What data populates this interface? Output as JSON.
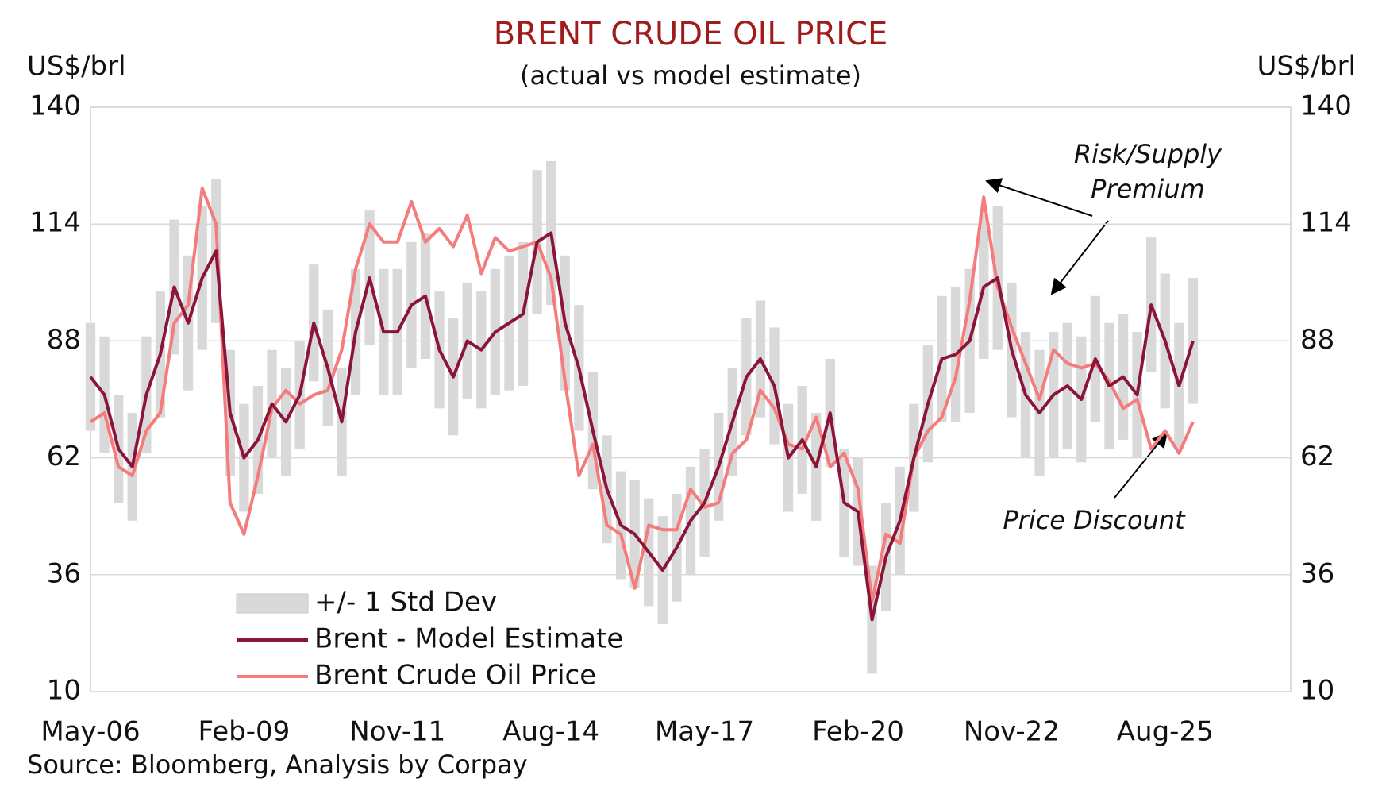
{
  "chart_data": {
    "type": "line",
    "title": "BRENT CRUDE OIL PRICE",
    "subtitle": "(actual vs model estimate)",
    "ylabel": "US$/brl",
    "y2label": "US$/brl",
    "source": "Source: Bloomberg, Analysis by Corpay",
    "categories": [
      "May-06",
      null,
      null,
      null,
      null,
      null,
      null,
      null,
      null,
      null,
      null,
      "Feb-09",
      null,
      null,
      null,
      null,
      null,
      null,
      null,
      null,
      null,
      null,
      "Nov-11",
      null,
      null,
      null,
      null,
      null,
      null,
      null,
      null,
      null,
      null,
      "Aug-14",
      null,
      null,
      null,
      null,
      null,
      null,
      null,
      null,
      null,
      null,
      "May-17",
      null,
      null,
      null,
      null,
      null,
      null,
      null,
      null,
      null,
      null,
      "Feb-20",
      null,
      null,
      null,
      null,
      null,
      null,
      null,
      null,
      null,
      null,
      "Nov-22",
      null,
      null,
      null,
      null,
      null,
      null,
      null,
      null,
      null,
      null,
      "Aug-25",
      null,
      null,
      null,
      null,
      null,
      null,
      null,
      null,
      null
    ],
    "band": {
      "name": "+/- 1 Std Dev",
      "color": "#d9d9d9",
      "values": [
        12,
        13,
        12,
        12,
        13,
        14,
        15,
        15,
        16,
        16,
        14,
        12,
        12,
        12,
        12,
        12,
        13,
        13,
        12,
        14,
        15,
        14,
        14,
        14,
        14,
        13,
        13,
        13,
        13,
        14,
        15,
        16,
        16,
        16,
        15,
        14,
        13,
        12,
        12,
        12,
        12,
        12,
        12,
        12,
        12,
        12,
        12,
        13,
        13,
        13,
        12,
        12,
        12,
        12,
        12,
        12,
        12,
        12,
        12,
        12,
        13,
        14,
        15,
        16,
        16,
        16,
        15,
        14,
        14,
        14,
        14,
        14,
        14,
        14,
        14,
        14,
        15,
        15,
        14,
        14,
        null,
        null,
        null,
        null,
        null,
        null,
        null
      ]
    },
    "series": [
      {
        "name": "Brent - Model Estimate",
        "color": "#8b1538",
        "values": [
          80,
          76,
          64,
          60,
          76,
          85,
          100,
          92,
          102,
          108,
          72,
          62,
          66,
          74,
          70,
          76,
          92,
          82,
          70,
          90,
          102,
          90,
          90,
          96,
          98,
          86,
          80,
          88,
          86,
          90,
          92,
          94,
          110,
          112,
          92,
          82,
          68,
          55,
          47,
          45,
          41,
          37,
          42,
          48,
          52,
          60,
          70,
          80,
          84,
          78,
          62,
          66,
          60,
          72,
          52,
          50,
          26,
          40,
          48,
          62,
          74,
          84,
          85,
          88,
          100,
          102,
          86,
          76,
          72,
          76,
          78,
          75,
          84,
          78,
          80,
          76,
          96,
          88,
          78,
          88,
          null,
          null,
          null,
          null,
          null,
          null,
          null
        ]
      },
      {
        "name": "Brent Crude Oil Price",
        "color": "#f47c7c",
        "values": [
          70,
          72,
          60,
          58,
          68,
          72,
          92,
          96,
          122,
          114,
          52,
          45,
          58,
          73,
          77,
          74,
          76,
          77,
          86,
          104,
          114,
          110,
          110,
          119,
          110,
          113,
          109,
          116,
          103,
          111,
          108,
          109,
          110,
          102,
          79,
          58,
          65,
          47,
          45,
          33,
          47,
          46,
          46,
          55,
          51,
          52,
          63,
          66,
          77,
          73,
          65,
          64,
          71,
          60,
          63,
          55,
          30,
          45,
          43,
          62,
          68,
          71,
          80,
          97,
          120,
          100,
          91,
          83,
          75,
          86,
          83,
          82,
          83,
          79,
          73,
          75,
          64,
          68,
          63,
          70,
          null,
          null,
          null,
          null,
          null,
          null,
          null
        ]
      }
    ],
    "ylim": [
      10,
      140
    ],
    "yticks": [
      10,
      36,
      62,
      88,
      114,
      140
    ],
    "y2lim": [
      10,
      140
    ],
    "y2ticks": [
      10,
      36,
      62,
      88,
      114,
      140
    ],
    "grid": true,
    "annotations": [
      {
        "lines": [
          "Risk/Supply",
          "Premium"
        ]
      },
      {
        "lines": [
          "Price Discount"
        ]
      }
    ]
  }
}
